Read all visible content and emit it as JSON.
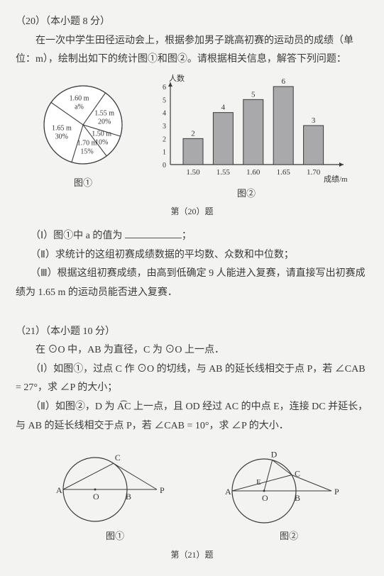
{
  "q20": {
    "heading": "（20）（本小题 8 分）",
    "p1": "　　在一次中学生田径运动会上，根据参加男子跳高初赛的运动员的成绩（单位：m），绘制出如下的统计图①和图②。请根据相关信息，解答下列问题：",
    "pie": {
      "slices": [
        {
          "label": "1.60 m",
          "sub": "a%",
          "color": "#ffffff"
        },
        {
          "label": "1.55 m",
          "sub": "20%",
          "color": "#ffffff"
        },
        {
          "label": "1.50 m",
          "sub": "10%",
          "color": "#ffffff"
        },
        {
          "label": "1.70 m",
          "sub": "15%",
          "color": "#ffffff"
        },
        {
          "label": "1.65 m",
          "sub": "30%",
          "color": "#ffffff"
        }
      ],
      "stroke": "#3a3a3a",
      "caption": "图①"
    },
    "bar": {
      "ylabel": "人数",
      "xlabel": "成绩/m",
      "categories": [
        "1.50",
        "1.55",
        "1.60",
        "1.65",
        "1.70"
      ],
      "values": [
        2,
        4,
        5,
        6,
        3
      ],
      "bar_color": "#a9a9ab",
      "bar_stroke": "#3a3a3a",
      "axis_color": "#3a3a3a",
      "grid_color": "#999999",
      "ytick_step": 1,
      "ymax": 6,
      "caption": "图②"
    },
    "mid_caption": "第（20）题",
    "i": "（Ⅰ）图①中 a 的值为 ",
    "i_tail": "；",
    "ii": "（Ⅱ）求统计的这组初赛成绩数据的平均数、众数和中位数；",
    "iii": "（Ⅲ）根据这组初赛成绩，由高到低确定 9 人能进入复赛，请直接写出初赛成绩为 1.65 m 的运动员能否进入复赛．"
  },
  "q21": {
    "heading": "（21）（本小题 10 分）",
    "p1": "　　在 ⊙O 中，AB 为直径，C 为 ⊙O 上一点．",
    "p2": "　　（Ⅰ）如图①，过点 C 作 ⊙O 的切线，与 AB 的延长线相交于点 P，若 ∠CAB = 27°，求 ∠P 的大小；",
    "p3": "　　（Ⅱ）如图②，D 为 A͡C 上一点，且 OD 经过 AC 的中点 E，连接 DC 并延长，与 AB 的延长线相交于点 P，若 ∠CAB = 10°，求 ∠P 的大小．",
    "fig1": {
      "caption": "图①",
      "labels": {
        "A": "A",
        "O": "O",
        "B": "B",
        "C": "C",
        "P": "P"
      },
      "stroke": "#3a3a3a"
    },
    "fig2": {
      "caption": "图②",
      "labels": {
        "A": "A",
        "O": "O",
        "B": "B",
        "C": "C",
        "D": "D",
        "E": "E",
        "P": "P"
      },
      "stroke": "#3a3a3a"
    },
    "mid_caption": "第（21）题"
  }
}
